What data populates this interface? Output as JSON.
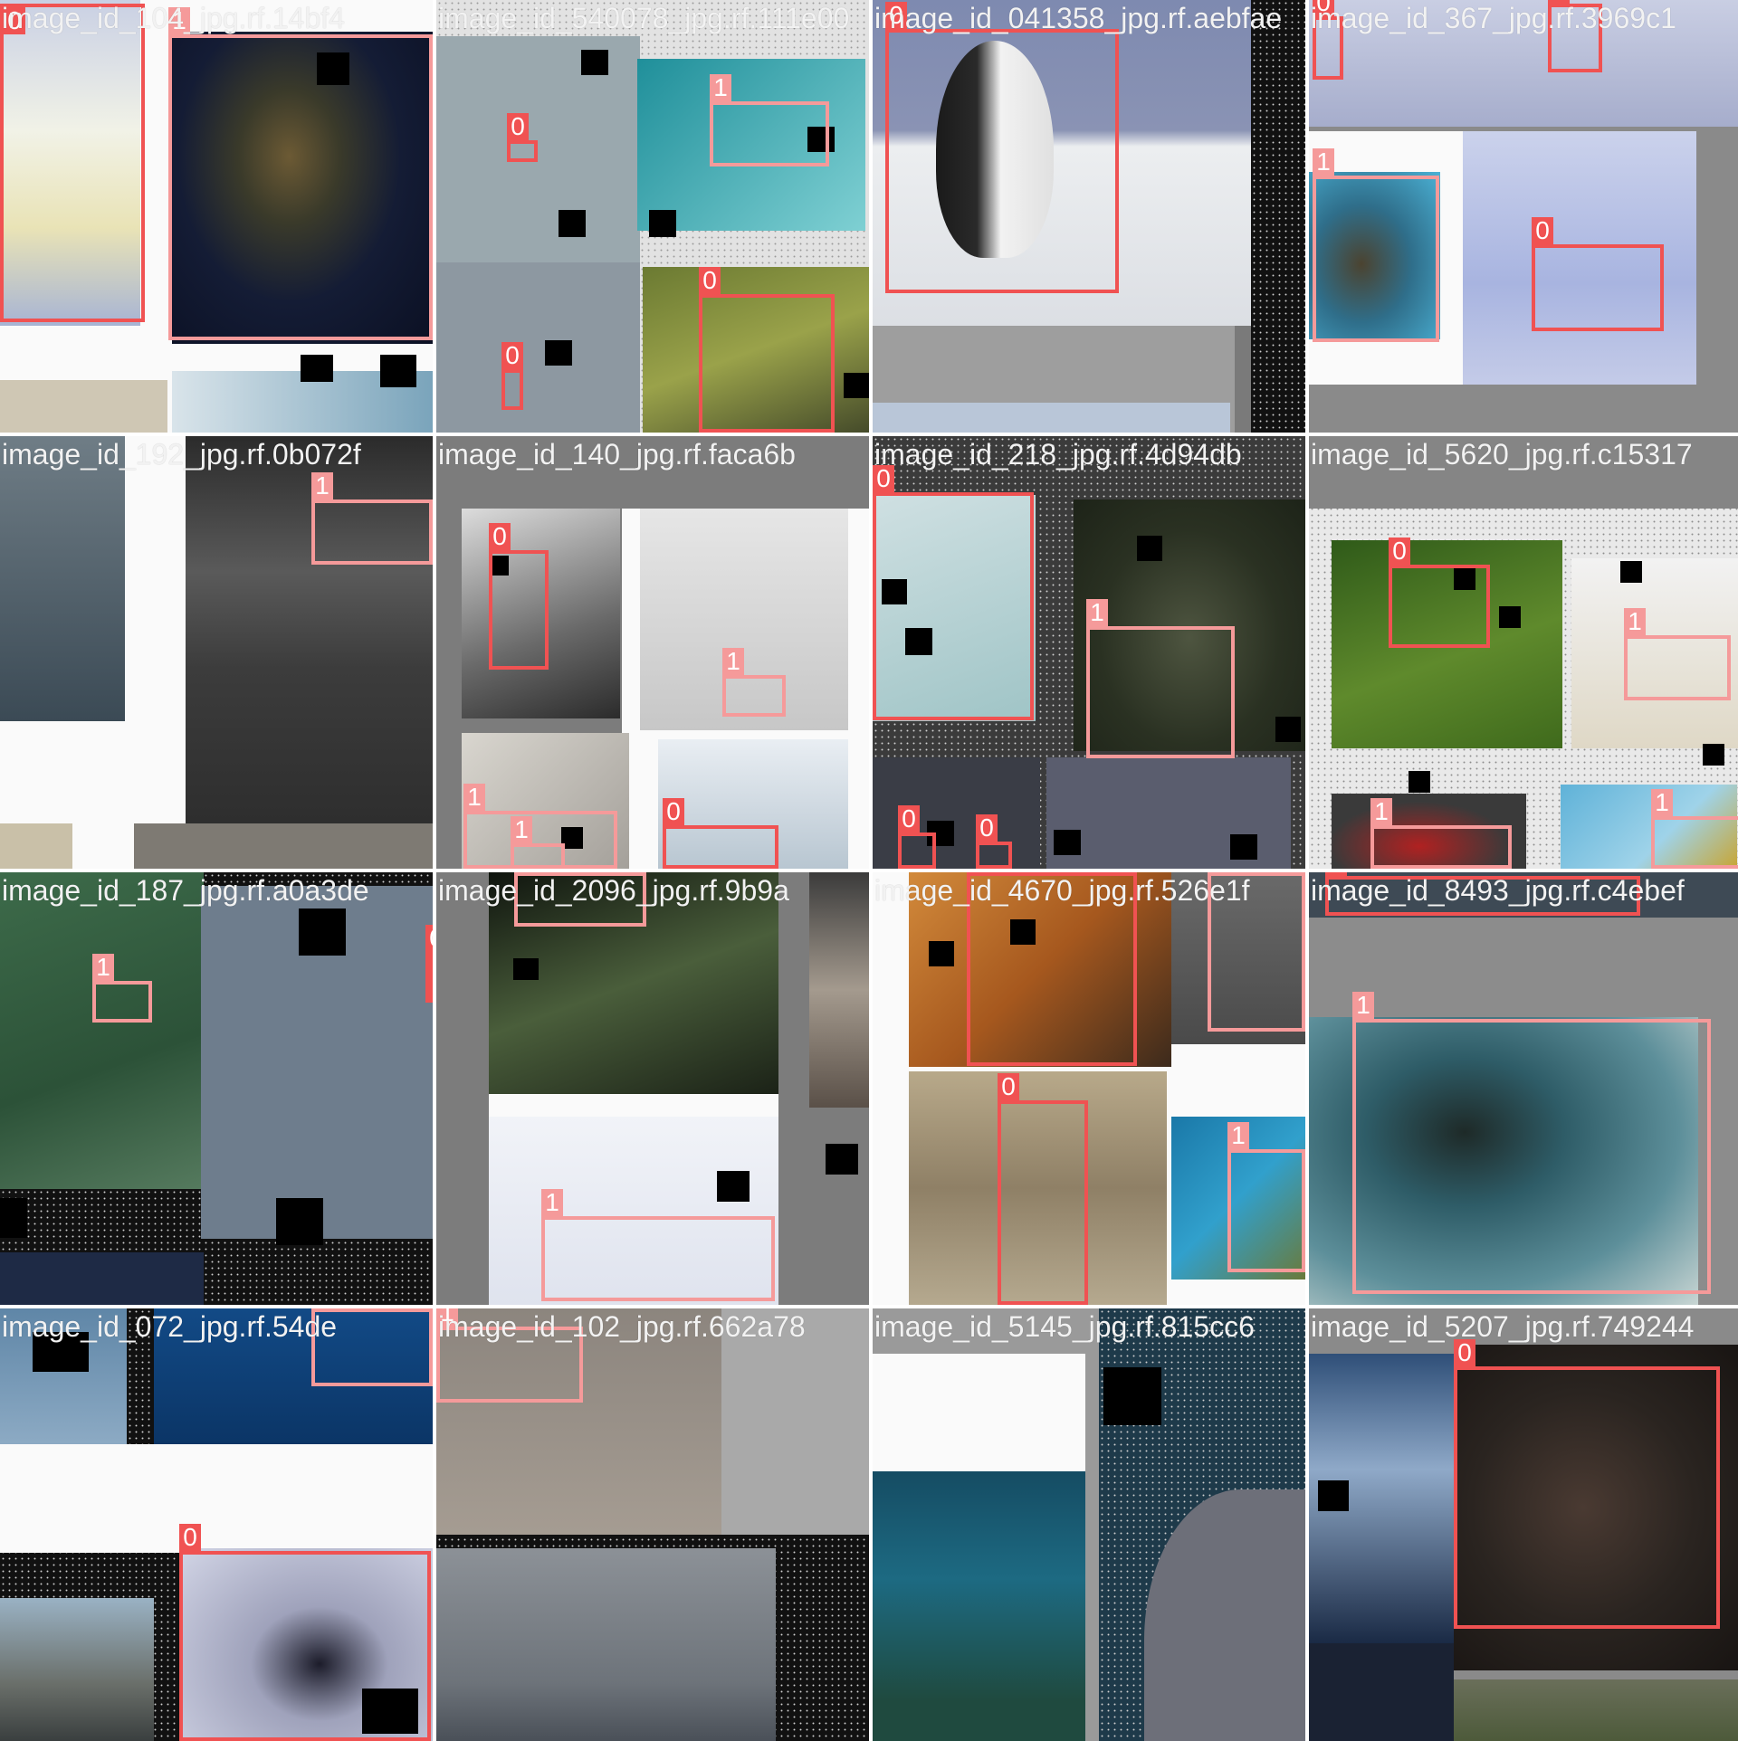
{
  "mosaic": {
    "tiles": [
      {
        "titles": [
          "image_id_104_jpg.rf.14bf4",
          "image_id_540078_jpg.rf.111e00"
        ],
        "boxes": [
          {
            "label": "0"
          },
          {
            "label": "1"
          }
        ]
      },
      {
        "titles": [
          "image_id_540078_jpg.rf.111e00",
          "image_id_041358_jpg.rf.aebfae"
        ],
        "boxes": [
          {
            "label": "0"
          },
          {
            "label": "1"
          },
          {
            "label": "0"
          },
          {
            "label": "0"
          }
        ]
      },
      {
        "titles": [
          "image_id_041358_jpg.rf.aebfae",
          "image_id_367_jpg.rf.3969c1"
        ],
        "boxes": [
          {
            "label": "0"
          }
        ]
      },
      {
        "titles": [
          "image_id_367_jpg.rf.3969c1"
        ],
        "boxes": [
          {
            "label": "0"
          },
          {
            "label": "0"
          },
          {
            "label": "1"
          },
          {
            "label": "0"
          }
        ]
      },
      {
        "titles": [
          "image_id_192_jpg.rf.0b072f",
          "image_id_140_jpg.rf.faca6b"
        ],
        "boxes": [
          {
            "label": "1"
          }
        ]
      },
      {
        "titles": [
          "image_id_140_jpg.rf.faca6b",
          "image_id_218_jpg.rf.4d94db"
        ],
        "boxes": [
          {
            "label": "0"
          },
          {
            "label": "1"
          },
          {
            "label": "1"
          },
          {
            "label": "0"
          },
          {
            "label": "1"
          }
        ]
      },
      {
        "titles": [
          "image_id_218_jpg.rf.4d94db",
          "image_id_5620_jpg.rf.c15317"
        ],
        "boxes": [
          {
            "label": "0"
          },
          {
            "label": "1"
          },
          {
            "label": "0"
          },
          {
            "label": "0"
          }
        ]
      },
      {
        "titles": [
          "image_id_5620_jpg.rf.c15317"
        ],
        "boxes": [
          {
            "label": "0"
          },
          {
            "label": "1"
          },
          {
            "label": "1"
          },
          {
            "label": "1"
          }
        ]
      },
      {
        "titles": [
          "image_id_187_jpg.rf.a0a3de",
          "image_id_2096_jpg.rf.9b9a"
        ],
        "boxes": [
          {
            "label": "1"
          },
          {
            "label": "0"
          }
        ]
      },
      {
        "titles": [
          "image_id_2096_jpg.rf.9b9a",
          "image_id_4670_jpg.rf.526e1f"
        ],
        "boxes": [
          {
            "label": "0"
          },
          {
            "label": "1"
          }
        ]
      },
      {
        "titles": [
          "image_id_4670_jpg.rf.526e1f",
          "image_id_8493_jpg.rf.c4ebef"
        ],
        "boxes": [
          {
            "label": "0"
          },
          {
            "label": "1"
          },
          {
            "label": "0"
          },
          {
            "label": "1"
          }
        ]
      },
      {
        "titles": [
          "image_id_8493_jpg.rf.c4ebef"
        ],
        "boxes": [
          {
            "label": "0"
          },
          {
            "label": "1"
          }
        ]
      },
      {
        "titles": [
          "image_id_072_jpg.rf.54de",
          "image_id_102_jpg.rf.662a78"
        ],
        "boxes": [
          {
            "label": "1"
          },
          {
            "label": "0"
          }
        ]
      },
      {
        "titles": [
          "image_id_102_jpg.rf.662a78",
          "image_id_5145_jpg.rf.815cc6"
        ],
        "boxes": [
          {
            "label": "1"
          }
        ]
      },
      {
        "titles": [
          "image_id_5145_jpg.rf.815cc6",
          "image_id_5207_jpg.rf.749244"
        ],
        "boxes": []
      },
      {
        "titles": [
          "image_id_5207_jpg.rf.749244"
        ],
        "boxes": [
          {
            "label": "0"
          }
        ]
      }
    ]
  },
  "colors": {
    "class0": "#f05252",
    "class1": "#f59a9a",
    "background": "#7a7a7a"
  }
}
